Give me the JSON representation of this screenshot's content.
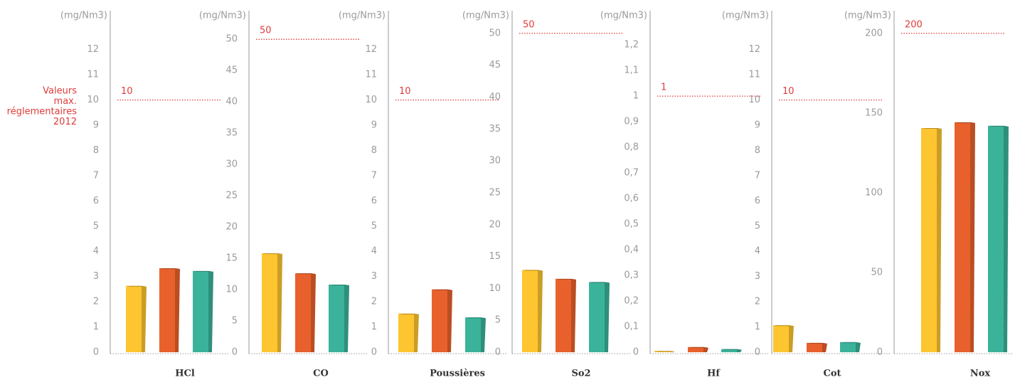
{
  "chart_data": [
    {
      "type": "bar",
      "xlabel": "HCl",
      "ylabel": "(mg/Nm3)",
      "annotation": [
        "Valeurs",
        "max.",
        "réglementaires",
        "2012"
      ],
      "values": [
        2.63,
        3.33,
        3.22
      ],
      "colors": [
        "#fdc52f",
        "#e8612c",
        "#3bb39a"
      ],
      "limit": 10,
      "limit_color": "#e03a3a",
      "ylim": [
        0,
        13.4
      ],
      "yticks": [
        0,
        1,
        2,
        3,
        4,
        5,
        6,
        7,
        8,
        9,
        10,
        11,
        12
      ]
    },
    {
      "type": "bar",
      "xlabel": "CO",
      "ylabel": "(mg/Nm3)",
      "values": [
        15.8,
        12.6,
        10.8
      ],
      "colors": [
        "#fdc52f",
        "#e8612c",
        "#3bb39a"
      ],
      "limit": 50,
      "limit_color": "#e03a3a",
      "ylim": [
        0,
        54
      ],
      "yticks": [
        0,
        5,
        10,
        15,
        20,
        25,
        30,
        35,
        40,
        45,
        50
      ]
    },
    {
      "type": "bar",
      "xlabel": "Poussières",
      "ylabel": "(mg/Nm3)",
      "values": [
        1.53,
        2.49,
        1.38
      ],
      "colors": [
        "#fdc52f",
        "#e8612c",
        "#3bb39a"
      ],
      "limit": 10,
      "limit_color": "#e03a3a",
      "ylim": [
        0,
        13.4
      ],
      "yticks": [
        0,
        1,
        2,
        3,
        4,
        5,
        6,
        7,
        8,
        9,
        10,
        11,
        12
      ]
    },
    {
      "type": "bar",
      "xlabel": "So2",
      "ylabel": "(mg/Nm3)",
      "values": [
        12.9,
        11.5,
        11.0
      ],
      "colors": [
        "#fdc52f",
        "#e8612c",
        "#3bb39a"
      ],
      "limit": 50,
      "limit_color": "#e03a3a",
      "ylim": [
        0,
        53
      ],
      "yticks": [
        0,
        5,
        10,
        15,
        20,
        25,
        30,
        35,
        40,
        45,
        50
      ]
    },
    {
      "type": "bar",
      "xlabel": "Hf",
      "ylabel": "(mg/Nm3)",
      "values": [
        0.005,
        0.02,
        0.012
      ],
      "colors": [
        "#fdc52f",
        "#e8612c",
        "#3bb39a"
      ],
      "limit": 1,
      "limit_color": "#e03a3a",
      "ylim": [
        0,
        1.32
      ],
      "yticks": [
        0,
        {
          "value": 0.1,
          "label": "0,1"
        },
        {
          "value": 0.2,
          "label": "0,2"
        },
        {
          "value": 0.3,
          "label": "0,3"
        },
        {
          "value": 0.4,
          "label": "0,4"
        },
        {
          "value": 0.5,
          "label": "0,5"
        },
        {
          "value": 0.6,
          "label": "0,6"
        },
        {
          "value": 0.7,
          "label": "0,7"
        },
        {
          "value": 0.8,
          "label": "0,8"
        },
        {
          "value": 0.9,
          "label": "0,9"
        },
        1,
        {
          "value": 1.1,
          "label": "1,1"
        },
        {
          "value": 1.2,
          "label": "1,2"
        }
      ]
    },
    {
      "type": "bar",
      "xlabel": "Cot",
      "ylabel": "(mg/Nm3)",
      "values": [
        1.07,
        0.37,
        0.4
      ],
      "colors": [
        "#fdc52f",
        "#e8612c",
        "#3bb39a"
      ],
      "limit": 10,
      "limit_color": "#e03a3a",
      "ylim": [
        0,
        13.4
      ],
      "yticks": [
        0,
        1,
        2,
        3,
        4,
        5,
        6,
        7,
        8,
        9,
        10,
        11,
        12
      ]
    },
    {
      "type": "bar",
      "xlabel": "Nox",
      "ylabel": "(mg/Nm3)",
      "values": [
        140.6,
        144.2,
        142
      ],
      "colors": [
        "#fdc52f",
        "#e8612c",
        "#3bb39a"
      ],
      "limit": 200,
      "limit_color": "#e03a3a",
      "ylim": [
        0,
        212
      ],
      "yticks": [
        0,
        50,
        100,
        150,
        200
      ]
    }
  ]
}
